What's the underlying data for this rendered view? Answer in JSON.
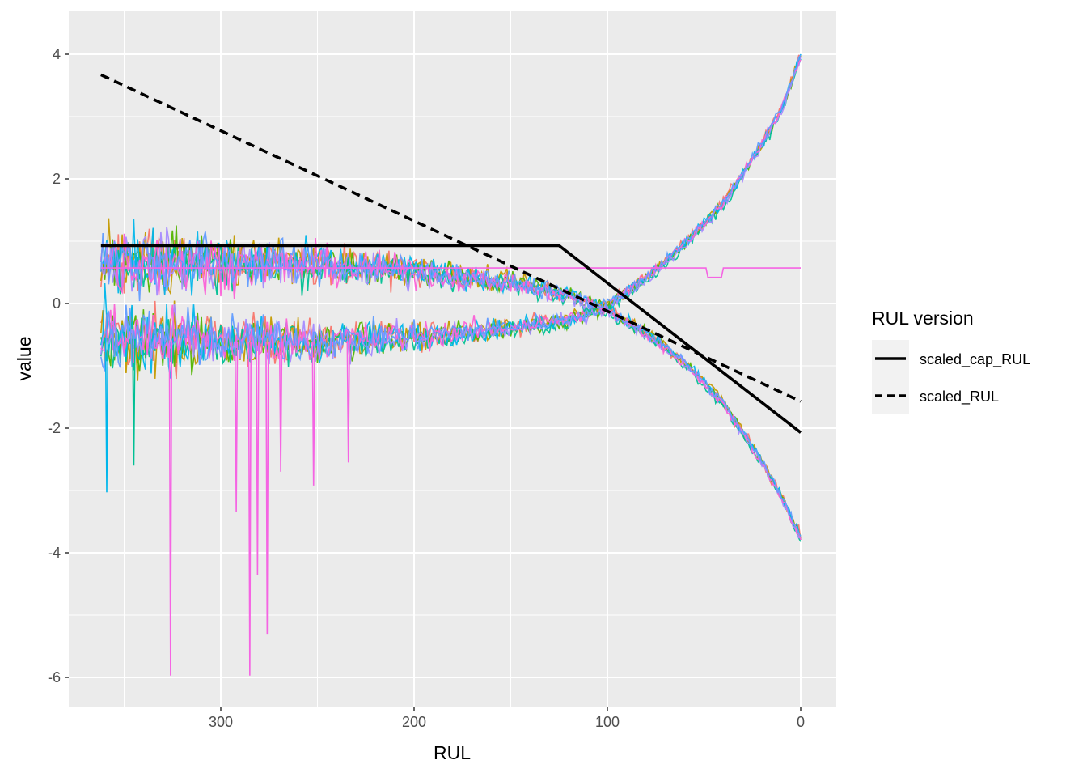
{
  "chart_data": {
    "type": "line",
    "xlabel": "RUL",
    "ylabel": "value",
    "xlim": [
      0,
      362
    ],
    "x_reversed": true,
    "ylim": [
      -6,
      4.2
    ],
    "x_ticks": [
      300,
      200,
      100,
      0
    ],
    "x_tick_labels": [
      "300",
      "200",
      "100",
      "0"
    ],
    "y_ticks": [
      4,
      2,
      0,
      -2,
      -4,
      -6
    ],
    "y_tick_labels": [
      "4",
      "2",
      "0",
      "-2",
      "-4",
      "-6"
    ],
    "grid": true,
    "legend": {
      "title": "RUL version",
      "position": "right",
      "entries": [
        {
          "label": "scaled_cap_RUL",
          "line_style": "solid",
          "color": "#000000"
        },
        {
          "label": "scaled_RUL",
          "line_style": "dashed",
          "color": "#000000"
        }
      ]
    },
    "series": [
      {
        "name": "scaled_cap_RUL",
        "style": "solid",
        "color": "#000000",
        "x": [
          362,
          125,
          0
        ],
        "y": [
          0.93,
          0.93,
          -2.07
        ]
      },
      {
        "name": "scaled_RUL",
        "style": "dashed",
        "color": "#000000",
        "x": [
          362,
          0
        ],
        "y": [
          3.67,
          -1.57
        ]
      }
    ],
    "sensor_traces": {
      "unlabeled": true,
      "colors": [
        "#F8766D",
        "#C49A00",
        "#53B400",
        "#00C094",
        "#00B6EB",
        "#A58AFF",
        "#FB61D7",
        "#619CFF"
      ],
      "trend_up": {
        "x": [
          362,
          300,
          250,
          200,
          150,
          120,
          100,
          80,
          60,
          40,
          20,
          10,
          0
        ],
        "y": [
          -0.55,
          -0.62,
          -0.62,
          -0.55,
          -0.4,
          -0.27,
          -0.05,
          0.4,
          0.95,
          1.6,
          2.55,
          3.1,
          3.95
        ]
      },
      "trend_down": {
        "x": [
          362,
          300,
          250,
          200,
          150,
          120,
          100,
          80,
          60,
          40,
          20,
          10,
          0
        ],
        "y": [
          0.7,
          0.65,
          0.62,
          0.52,
          0.32,
          0.14,
          -0.1,
          -0.48,
          -0.95,
          -1.6,
          -2.55,
          -3.1,
          -3.75
        ]
      },
      "flat_segment": {
        "x": [
          362,
          0
        ],
        "y": [
          0.57,
          0.57
        ]
      },
      "spikes": [
        {
          "x": 326,
          "y": -5.97
        },
        {
          "x": 285,
          "y": -5.97
        },
        {
          "x": 276,
          "y": -5.3
        },
        {
          "x": 281,
          "y": -4.35
        },
        {
          "x": 292,
          "y": -3.35
        },
        {
          "x": 252,
          "y": -2.92
        },
        {
          "x": 269,
          "y": -2.7
        },
        {
          "x": 234,
          "y": -2.55
        },
        {
          "x": 359,
          "y": -3.03
        },
        {
          "x": 345,
          "y": -2.6
        }
      ]
    }
  }
}
